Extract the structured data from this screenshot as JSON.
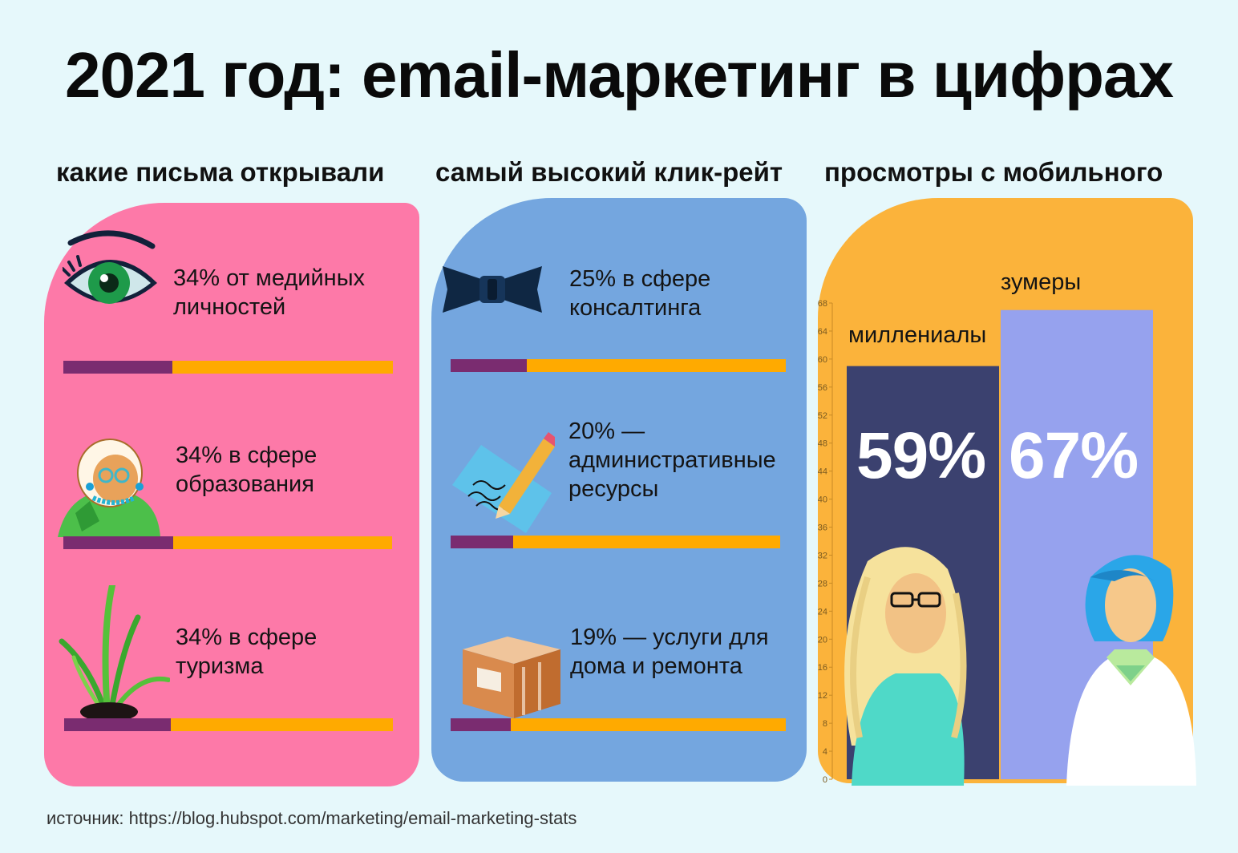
{
  "title": "2021 год: email-маркетинг  в цифрах",
  "columns": {
    "opened": {
      "heading": "какие письма открывали"
    },
    "ctr": {
      "heading": "самый высокий клик-рейт"
    },
    "mobile": {
      "heading": "просмотры с мобильного"
    }
  },
  "stats_opened": [
    {
      "line1": "34% от медийных",
      "line2": "личностей",
      "value": 34,
      "icon": "eye-icon"
    },
    {
      "line1": "34% в сфере",
      "line2": "образования",
      "value": 34,
      "icon": "old-woman-icon"
    },
    {
      "line1": "34% в сфере",
      "line2": "туризма",
      "value": 34,
      "icon": "plant-icon"
    }
  ],
  "stats_ctr": [
    {
      "line1": "25% в сфере",
      "line2": "консалтинга",
      "value": 25,
      "icon": "bow-tie-icon"
    },
    {
      "line1": "20% —",
      "line2": "административные",
      "line3": "ресурсы",
      "value": 20,
      "icon": "pencil-paper-icon"
    },
    {
      "line1": "19% — услуги для",
      "line2": "дома и ремонта",
      "value": 19,
      "icon": "box-icon"
    }
  ],
  "chart_data": {
    "type": "bar",
    "categories": [
      "миллениалы",
      "зумеры"
    ],
    "values": [
      59,
      67
    ],
    "value_labels": [
      "59%",
      "67%"
    ],
    "ylim": [
      0,
      68
    ],
    "yticks": [
      0,
      4,
      8,
      12,
      16,
      20,
      24,
      28,
      32,
      36,
      40,
      44,
      48,
      52,
      56,
      60,
      64,
      68
    ],
    "colors": [
      "#3b416f",
      "#96a2ee"
    ]
  },
  "colors": {
    "pink_panel": "#fd79a8",
    "blue_panel": "#74a6df",
    "orange_panel": "#fbb33b",
    "bar_track": "#ffaa00",
    "bar_fill": "#7a2c70"
  },
  "source": "источник: https://blog.hubspot.com/marketing/email-marketing-stats"
}
